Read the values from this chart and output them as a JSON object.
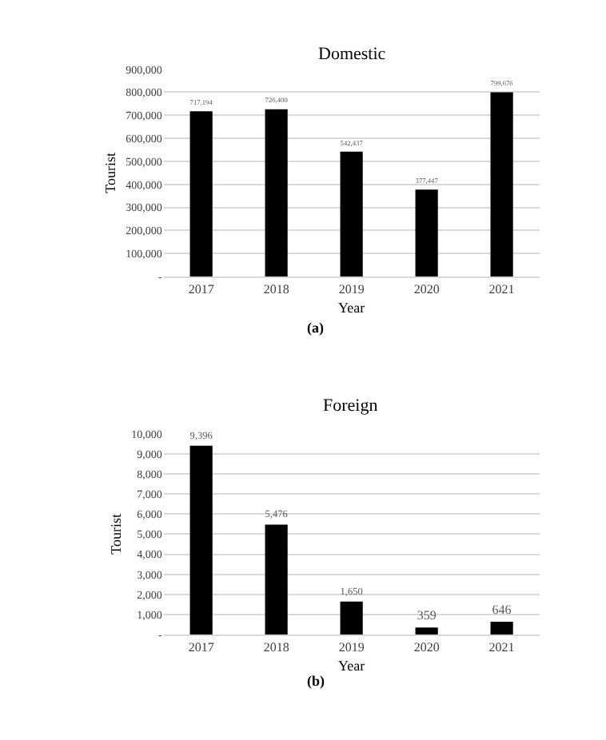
{
  "chart_data": [
    {
      "type": "bar",
      "title": "Domestic",
      "xlabel": "Year",
      "ylabel": "Tourist",
      "categories": [
        "2017",
        "2018",
        "2019",
        "2020",
        "2021"
      ],
      "values": [
        717194,
        726400,
        542437,
        377447,
        799676
      ],
      "value_labels": [
        "717,194",
        "726,400",
        "542,437",
        "377,447",
        "799,676"
      ],
      "color": "#000000",
      "ylim": [
        0,
        900000
      ],
      "yticks": [
        {
          "value": 0,
          "label": "-"
        },
        {
          "value": 100000,
          "label": "100,000"
        },
        {
          "value": 200000,
          "label": "200,000"
        },
        {
          "value": 300000,
          "label": "300,000"
        },
        {
          "value": 400000,
          "label": "400,000"
        },
        {
          "value": 500000,
          "label": "500,000"
        },
        {
          "value": 600000,
          "label": "600,000"
        },
        {
          "value": 700000,
          "label": "700,000"
        },
        {
          "value": 800000,
          "label": "800,000"
        },
        {
          "value": 900000,
          "label": "900,000"
        }
      ],
      "grid": "y",
      "annotations": [
        "(a)"
      ]
    },
    {
      "type": "bar",
      "title": "Foreign",
      "xlabel": "Year",
      "ylabel": "Tourist",
      "categories": [
        "2017",
        "2018",
        "2019",
        "2020",
        "2021"
      ],
      "values": [
        9396,
        5476,
        1650,
        359,
        646
      ],
      "value_labels": [
        "9,396",
        "5,476",
        "1,650",
        "359",
        "646"
      ],
      "color": "#000000",
      "ylim": [
        0,
        10000
      ],
      "yticks": [
        {
          "value": 0,
          "label": "-"
        },
        {
          "value": 1000,
          "label": "1,000"
        },
        {
          "value": 2000,
          "label": "2,000"
        },
        {
          "value": 3000,
          "label": "3,000"
        },
        {
          "value": 4000,
          "label": "4,000"
        },
        {
          "value": 5000,
          "label": "5,000"
        },
        {
          "value": 6000,
          "label": "6,000"
        },
        {
          "value": 7000,
          "label": "7,000"
        },
        {
          "value": 8000,
          "label": "8,000"
        },
        {
          "value": 9000,
          "label": "9,000"
        },
        {
          "value": 10000,
          "label": "10,000"
        }
      ],
      "grid": "y",
      "annotations": [
        "(b)"
      ]
    }
  ]
}
